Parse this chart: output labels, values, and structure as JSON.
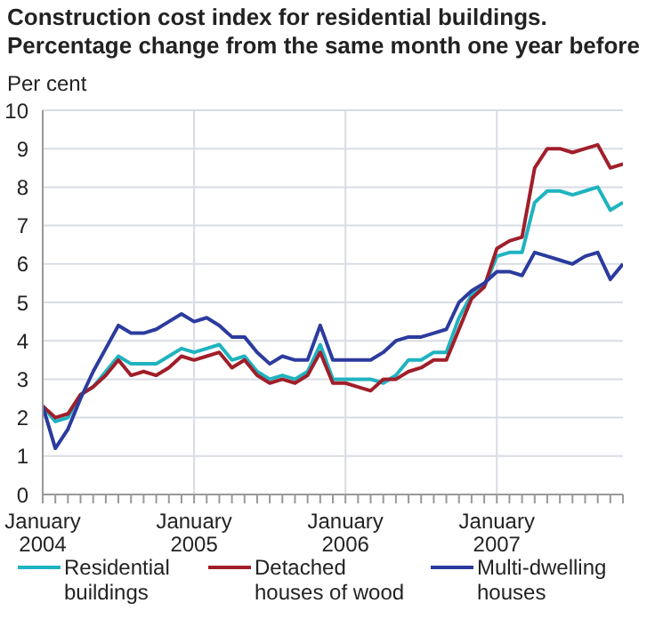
{
  "chart_data": {
    "type": "line",
    "title": "Construction cost index for residential buildings. Percentage change from the same month one year before",
    "ylabel": "Per cent",
    "x": [
      "2004-01",
      "2004-02",
      "2004-03",
      "2004-04",
      "2004-05",
      "2004-06",
      "2004-07",
      "2004-08",
      "2004-09",
      "2004-10",
      "2004-11",
      "2004-12",
      "2005-01",
      "2005-02",
      "2005-03",
      "2005-04",
      "2005-05",
      "2005-06",
      "2005-07",
      "2005-08",
      "2005-09",
      "2005-10",
      "2005-11",
      "2005-12",
      "2006-01",
      "2006-02",
      "2006-03",
      "2006-04",
      "2006-05",
      "2006-06",
      "2006-07",
      "2006-08",
      "2006-09",
      "2006-10",
      "2006-11",
      "2006-12",
      "2007-01",
      "2007-02",
      "2007-03",
      "2007-04",
      "2007-05",
      "2007-06",
      "2007-07",
      "2007-08",
      "2007-09",
      "2007-10",
      "2007-11"
    ],
    "series": [
      {
        "name": "Residential buildings",
        "color": "#1fb3c0",
        "values": [
          2.3,
          1.9,
          2.0,
          2.6,
          2.8,
          3.2,
          3.6,
          3.4,
          3.4,
          3.4,
          3.6,
          3.8,
          3.7,
          3.8,
          3.9,
          3.5,
          3.6,
          3.2,
          3.0,
          3.1,
          3.0,
          3.2,
          3.9,
          3.0,
          3.0,
          3.0,
          3.0,
          2.9,
          3.1,
          3.5,
          3.5,
          3.7,
          3.7,
          4.6,
          5.2,
          5.4,
          6.2,
          6.3,
          6.3,
          7.6,
          7.9,
          7.9,
          7.8,
          7.9,
          8.0,
          7.4,
          7.6
        ]
      },
      {
        "name": "Detached houses of wood",
        "color": "#a01e2a",
        "values": [
          2.3,
          2.0,
          2.1,
          2.6,
          2.8,
          3.1,
          3.5,
          3.1,
          3.2,
          3.1,
          3.3,
          3.6,
          3.5,
          3.6,
          3.7,
          3.3,
          3.5,
          3.1,
          2.9,
          3.0,
          2.9,
          3.1,
          3.7,
          2.9,
          2.9,
          2.8,
          2.7,
          3.0,
          3.0,
          3.2,
          3.3,
          3.5,
          3.5,
          4.3,
          5.1,
          5.4,
          6.4,
          6.6,
          6.7,
          8.5,
          9.0,
          9.0,
          8.9,
          9.0,
          9.1,
          8.5,
          8.6
        ]
      },
      {
        "name": "Multi-dwelling houses",
        "color": "#2b3b9e",
        "values": [
          2.3,
          1.2,
          1.7,
          2.5,
          3.2,
          3.8,
          4.4,
          4.2,
          4.2,
          4.3,
          4.5,
          4.7,
          4.5,
          4.6,
          4.4,
          4.1,
          4.1,
          3.7,
          3.4,
          3.6,
          3.5,
          3.5,
          4.4,
          3.5,
          3.5,
          3.5,
          3.5,
          3.7,
          4.0,
          4.1,
          4.1,
          4.2,
          4.3,
          5.0,
          5.3,
          5.5,
          5.8,
          5.8,
          5.7,
          6.3,
          6.2,
          6.1,
          6.0,
          6.2,
          6.3,
          5.6,
          6.0
        ]
      }
    ],
    "xlim": [
      "2004-01",
      "2007-11"
    ],
    "xticks": [
      {
        "value": "2004-01",
        "label": "January 2004"
      },
      {
        "value": "2004-02",
        "label": null
      },
      {
        "value": "2004-03",
        "label": null
      },
      {
        "value": "2004-04",
        "label": null
      },
      {
        "value": "2004-05",
        "label": null
      },
      {
        "value": "2004-06",
        "label": null
      },
      {
        "value": "2004-07",
        "label": null
      },
      {
        "value": "2004-08",
        "label": null
      },
      {
        "value": "2004-09",
        "label": null
      },
      {
        "value": "2004-10",
        "label": null
      },
      {
        "value": "2004-11",
        "label": null
      },
      {
        "value": "2004-12",
        "label": null
      },
      {
        "value": "2005-01",
        "label": "January 2005"
      },
      {
        "value": "2005-02",
        "label": null
      },
      {
        "value": "2005-03",
        "label": null
      },
      {
        "value": "2005-04",
        "label": null
      },
      {
        "value": "2005-05",
        "label": null
      },
      {
        "value": "2005-06",
        "label": null
      },
      {
        "value": "2005-07",
        "label": null
      },
      {
        "value": "2005-08",
        "label": null
      },
      {
        "value": "2005-09",
        "label": null
      },
      {
        "value": "2005-10",
        "label": null
      },
      {
        "value": "2005-11",
        "label": null
      },
      {
        "value": "2005-12",
        "label": null
      },
      {
        "value": "2006-01",
        "label": "January 2006"
      },
      {
        "value": "2006-02",
        "label": null
      },
      {
        "value": "2006-03",
        "label": null
      },
      {
        "value": "2006-04",
        "label": null
      },
      {
        "value": "2006-05",
        "label": null
      },
      {
        "value": "2006-06",
        "label": null
      },
      {
        "value": "2006-07",
        "label": null
      },
      {
        "value": "2006-08",
        "label": null
      },
      {
        "value": "2006-09",
        "label": null
      },
      {
        "value": "2006-10",
        "label": null
      },
      {
        "value": "2006-11",
        "label": null
      },
      {
        "value": "2006-12",
        "label": null
      },
      {
        "value": "2007-01",
        "label": "January 2007"
      },
      {
        "value": "2007-02",
        "label": null
      },
      {
        "value": "2007-03",
        "label": null
      },
      {
        "value": "2007-04",
        "label": null
      },
      {
        "value": "2007-05",
        "label": null
      },
      {
        "value": "2007-06",
        "label": null
      },
      {
        "value": "2007-07",
        "label": null
      },
      {
        "value": "2007-08",
        "label": null
      },
      {
        "value": "2007-09",
        "label": null
      },
      {
        "value": "2007-10",
        "label": null
      },
      {
        "value": "2007-11",
        "label": null
      }
    ],
    "ylim": [
      0,
      10
    ],
    "yticks": [
      0,
      1,
      2,
      3,
      4,
      5,
      6,
      7,
      8,
      9,
      10
    ],
    "grid": true,
    "legend": "bottom",
    "marker": "none",
    "line_style": "solid"
  }
}
